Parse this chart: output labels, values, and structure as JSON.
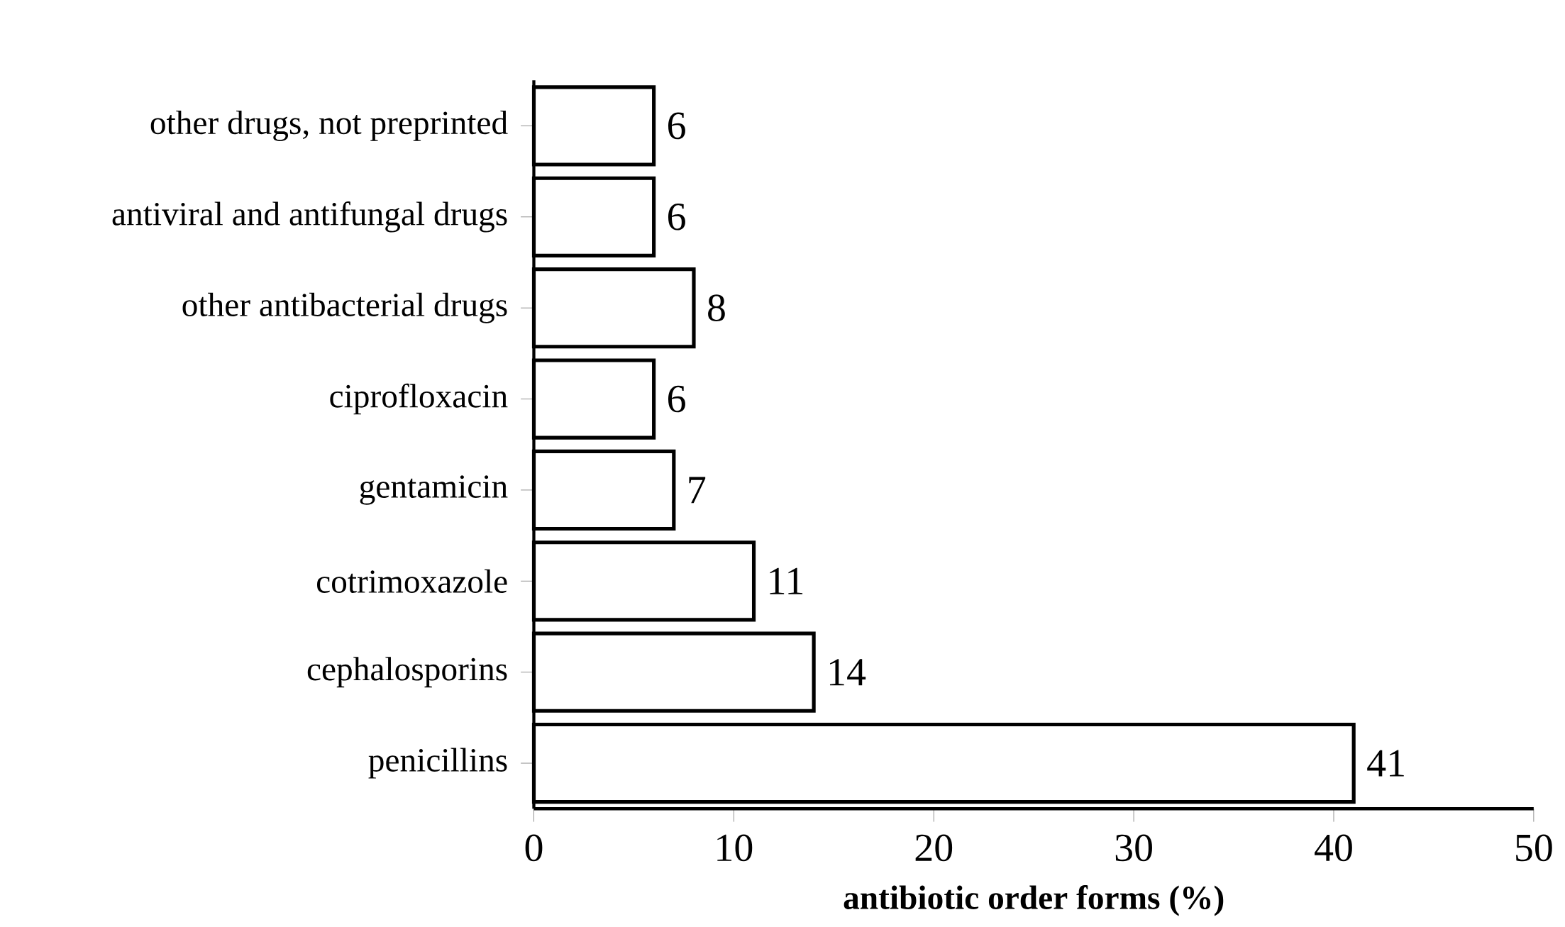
{
  "chart_data": {
    "type": "bar",
    "orientation": "horizontal",
    "xlabel": "antibiotic order forms (%)",
    "categories": [
      "other drugs, not preprinted",
      "antiviral and antifungal drugs",
      "other antibacterial drugs",
      "ciprofloxacin",
      "gentamicin",
      "cotrimoxazole",
      "cephalosporins",
      "penicillins"
    ],
    "values": [
      6,
      6,
      8,
      6,
      7,
      11,
      14,
      41
    ],
    "color": "#000000",
    "data_labels": true,
    "xlim": [
      0,
      50
    ],
    "xticks": [
      0,
      10,
      20,
      30,
      40,
      50
    ]
  }
}
